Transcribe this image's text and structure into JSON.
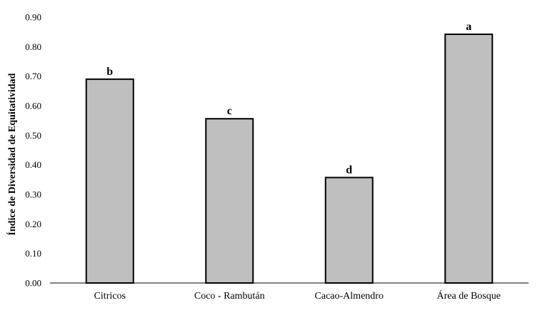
{
  "chart_data": {
    "type": "bar",
    "categories": [
      "Citricos",
      "Coco - Rambután",
      "Cacao-Almendro",
      "Área de Bosque"
    ],
    "values": [
      0.69,
      0.556,
      0.357,
      0.842
    ],
    "labels": [
      "b",
      "c",
      "d",
      "a"
    ],
    "ylabel": "Índice de Diversidad de Equitatividad",
    "xlabel": "",
    "ylim": [
      0,
      0.9
    ],
    "yticks": [
      "0.00",
      "0.10",
      "0.20",
      "0.30",
      "0.40",
      "0.50",
      "0.60",
      "0.70",
      "0.80",
      "0.90"
    ],
    "grid": false,
    "legend": "none",
    "colors": {
      "bar_fill": "#bfbfbf",
      "bar_stroke": "#000000",
      "axis": "#000000"
    }
  }
}
